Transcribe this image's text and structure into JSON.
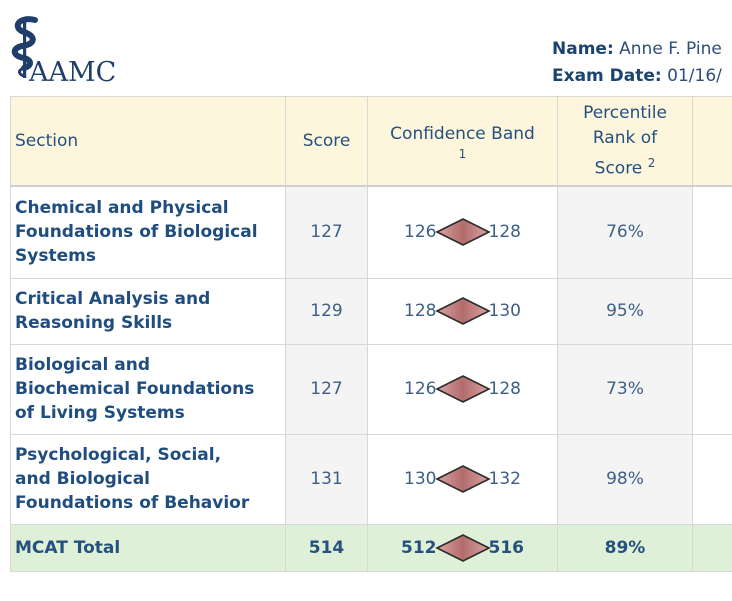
{
  "header": {
    "logo_text": "AAMC",
    "name_label": "Name:",
    "name_value": "Anne F. Pine",
    "exam_date_label": "Exam Date:",
    "exam_date_value": "01/16/"
  },
  "table": {
    "headers": {
      "section": "Section",
      "score": "Score",
      "confidence_band": "Confidence Band",
      "confidence_band_note": "1",
      "percentile_line1": "Percentile",
      "percentile_line2": "Rank of",
      "percentile_line3": "Score",
      "percentile_note": "2"
    },
    "rows": [
      {
        "section_lines": [
          "Chemical and Physical",
          "Foundations of Biological",
          "Systems"
        ],
        "score": "127",
        "band_low": "126",
        "band_high": "128",
        "percentile": "76%"
      },
      {
        "section_lines": [
          "Critical Analysis and",
          "Reasoning Skills"
        ],
        "score": "129",
        "band_low": "128",
        "band_high": "130",
        "percentile": "95%"
      },
      {
        "section_lines": [
          "Biological and",
          "Biochemical Foundations",
          "of Living Systems"
        ],
        "score": "127",
        "band_low": "126",
        "band_high": "128",
        "percentile": "73%"
      },
      {
        "section_lines": [
          "Psychological, Social,",
          "and Biological",
          "Foundations of Behavior"
        ],
        "score": "131",
        "band_low": "130",
        "band_high": "132",
        "percentile": "98%"
      }
    ],
    "total": {
      "section": "MCAT Total",
      "score": "514",
      "band_low": "512",
      "band_high": "516",
      "percentile": "89%"
    }
  },
  "colors": {
    "header_bg": "#fdf5dc",
    "total_bg": "#dff0d8",
    "diamond_fill": "#b97878",
    "brand_blue": "#1f4d7f"
  },
  "icons": {
    "logo": "caduceus-logo-icon",
    "band_marker": "diamond-icon"
  }
}
